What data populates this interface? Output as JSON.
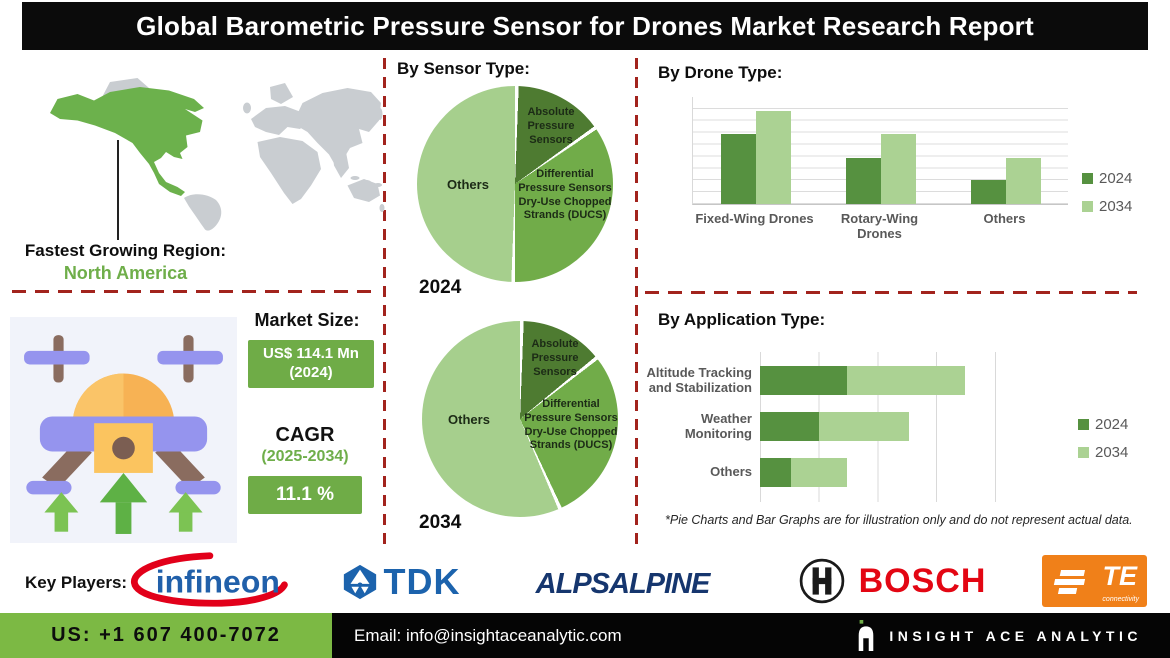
{
  "title": "Global Barometric Pressure Sensor for Drones Market Research Report",
  "region": {
    "label": "Fastest Growing Region:",
    "value": "North America"
  },
  "market": {
    "size_label": "Market Size:",
    "size_value": "US$ 114.1 Mn (2024)",
    "cagr_label": "CAGR",
    "cagr_period": "(2025-2034)",
    "cagr_value": "11.1 %"
  },
  "sections": {
    "sensor_heading": "By Sensor Type:"
  },
  "chart_data": [
    {
      "type": "pie",
      "year_label": "2024",
      "labels": [
        "Absolute Pressure Sensors",
        "Differential Pressure Sensors Dry-Use Chopped Strands (DUCS)",
        "Others"
      ],
      "values": [
        15,
        35,
        50
      ],
      "colors": [
        "#4e7b31",
        "#71ac49",
        "#a6cf8d"
      ],
      "note": "illustrative shares, clockwise from 12 o'clock"
    },
    {
      "type": "pie",
      "year_label": "2034",
      "labels": [
        "Absolute Pressure Sensors",
        "Differential Pressure Sensors Dry-Use Chopped Strands (DUCS)",
        "Others"
      ],
      "values": [
        14,
        29,
        57
      ],
      "colors": [
        "#4e7b31",
        "#71ac49",
        "#a6cf8d"
      ],
      "note": "illustrative shares, clockwise from 12 o'clock"
    },
    {
      "type": "bar",
      "title": "By  Drone Type:",
      "categories": [
        "Fixed-Wing Drones",
        "Rotary-Wing Drones",
        "Others"
      ],
      "series": [
        {
          "name": "2024",
          "color": "#569140",
          "values": [
            65,
            43,
            22
          ]
        },
        {
          "name": "2034",
          "color": "#abd293",
          "values": [
            87,
            65,
            43
          ]
        }
      ],
      "ylim": [
        0,
        100
      ],
      "grid": true,
      "legend_position": "right"
    },
    {
      "type": "stacked-bar-horizontal",
      "title": "By Application Type:",
      "categories": [
        "Altitude Tracking and Stabilization",
        "Weather Monitoring",
        "Others"
      ],
      "series": [
        {
          "name": "2024",
          "color": "#569140",
          "values": [
            37,
            25,
            13
          ]
        },
        {
          "name": "2034",
          "color": "#abd293",
          "values": [
            50,
            38,
            24
          ]
        }
      ],
      "xlim": [
        0,
        100
      ],
      "grid": true,
      "legend_position": "right"
    }
  ],
  "footnote": "*Pie Charts and Bar Graphs are for illustration only and do not represent actual data.",
  "key_players": {
    "label": "Key Players:",
    "logos": [
      {
        "name": "infineon-logo",
        "text": "infineon"
      },
      {
        "name": "tdk-logo",
        "text": "TDK"
      },
      {
        "name": "alps-alpine-logo",
        "text": "ALPSALPINE"
      },
      {
        "name": "bosch-logo",
        "text": "BOSCH"
      },
      {
        "name": "te-connectivity-logo",
        "text": "TE",
        "sub": "connectivity"
      }
    ]
  },
  "footer": {
    "phone": "US: +1 607 400-7072",
    "email": "Email: info@insightaceanalytic.com",
    "brand": "INSIGHT ACE ANALYTIC"
  },
  "colors": {
    "accent_green": "#6fac47",
    "footer_green": "#7cb944",
    "dash_red": "#a2231d",
    "map_green": "#6cb14c",
    "map_gray": "#c9cdd1",
    "bar_2024": "#569140",
    "bar_2034": "#abd293"
  }
}
